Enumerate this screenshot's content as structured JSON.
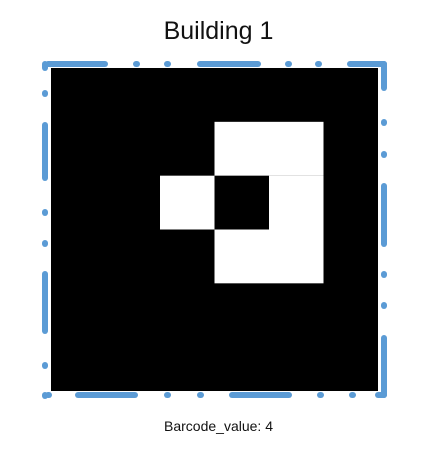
{
  "title": "Building 1",
  "caption": "Barcode_value: 4",
  "colors": {
    "marker_background": "#000000",
    "marker_cells": "#ffffff",
    "border_dashes": "#5b9bd5",
    "text": "#111111"
  },
  "marker": {
    "grid_size": 6,
    "white_cells": [
      [
        1,
        3
      ],
      [
        1,
        4
      ],
      [
        2,
        2
      ],
      [
        2,
        4
      ],
      [
        3,
        3
      ],
      [
        3,
        4
      ]
    ]
  }
}
